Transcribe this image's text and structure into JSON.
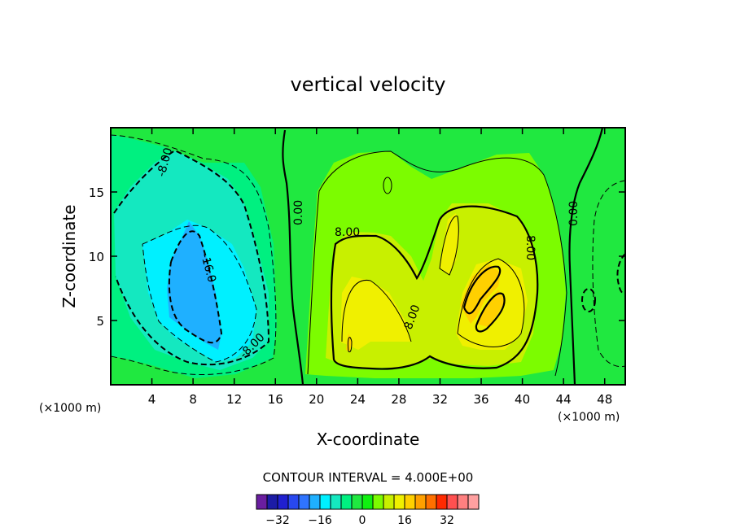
{
  "chart_data": {
    "type": "contour",
    "title": "vertical velocity",
    "xlabel": "X-coordinate",
    "ylabel": "Z-coordinate",
    "x_units": "(×1000 m)",
    "x_units_right": "(×1000 m)",
    "xlim": [
      0,
      50
    ],
    "ylim": [
      0,
      20
    ],
    "x_ticks": [
      4,
      8,
      12,
      16,
      20,
      24,
      28,
      32,
      36,
      40,
      44,
      48
    ],
    "y_ticks": [
      5,
      10,
      15
    ],
    "contour_interval_text": "CONTOUR INTERVAL = 4.000E+00",
    "contour_labels": [
      {
        "text": "-8.00",
        "x": 5.0,
        "z": 16.0
      },
      {
        "text": "-16.0",
        "x": 9.3,
        "z": 9.8
      },
      {
        "text": "-8.00",
        "x": 13.5,
        "z": 3.1
      },
      {
        "text": "0.00",
        "x": 18.3,
        "z": 13.8
      },
      {
        "text": "8.00",
        "x": 23.5,
        "z": 11.9
      },
      {
        "text": "8.00",
        "x": 29.4,
        "z": 5.7
      },
      {
        "text": "8.00",
        "x": 40.9,
        "z": 10.5
      },
      {
        "text": "0.00",
        "x": 45.0,
        "z": 13.7
      }
    ],
    "colorbar": {
      "tick_labels": [
        "−32",
        "−16",
        "0",
        "16",
        "32"
      ],
      "tick_values": [
        -32,
        -16,
        0,
        16,
        32
      ],
      "levels": [
        -36,
        -32,
        -28,
        -24,
        -20,
        -16,
        -12,
        -8,
        -4,
        0,
        4,
        8,
        12,
        16,
        20,
        24,
        28,
        32,
        36
      ],
      "colors": [
        "#6a1ea0",
        "#1c1ca6",
        "#2020d0",
        "#2848f0",
        "#2f74ff",
        "#1fb0ff",
        "#00f0ff",
        "#14e8c0",
        "#00f080",
        "#20e840",
        "#10f010",
        "#7cfc00",
        "#c8f000",
        "#f0f000",
        "#ffd000",
        "#ffa000",
        "#ff7000",
        "#ff2a00",
        "#ff5050",
        "#ff8080",
        "#ffa0a0"
      ]
    }
  }
}
